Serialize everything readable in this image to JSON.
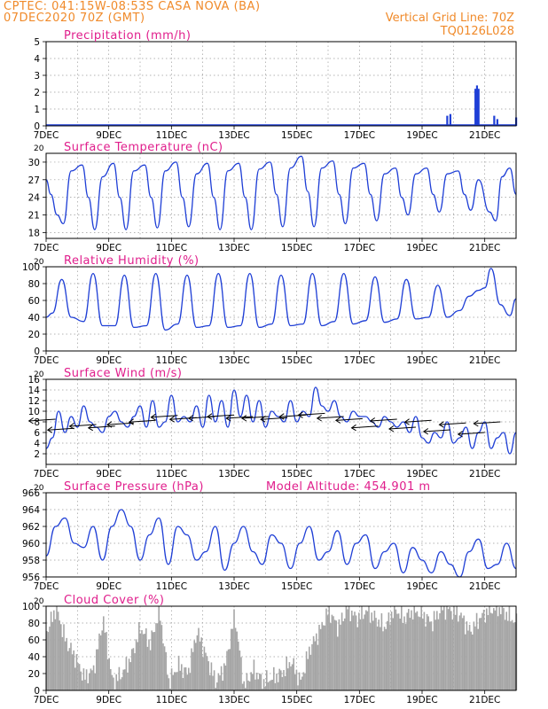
{
  "header": {
    "line1": "CPTEC:   041:15W-08:53S   CASA NOVA (BA)",
    "line2": "07DEC2020 70Z (GMT)",
    "grid_note": "Vertical Grid Line: 70Z",
    "model_code": "TQ0126L028"
  },
  "colors": {
    "header": "#f08a2a",
    "panel_title": "#e01e8c",
    "series": "#1f3fd6",
    "cloud": "#a6a6a6",
    "arrow": "#000000",
    "grid": "#9a9a9a"
  },
  "x_ticks": [
    "7DEC",
    "9DEC",
    "11DEC",
    "13DEC",
    "15DEC",
    "17DEC",
    "19DEC",
    "21DEC"
  ],
  "panels": [
    {
      "id": "precip",
      "title": "Precipitation (mm/h)",
      "subtitle": "",
      "extra": "",
      "type": "bar",
      "ylim": [
        0,
        5
      ],
      "yticks": [
        "0",
        "1",
        "2",
        "3",
        "4",
        "5"
      ]
    },
    {
      "id": "temp",
      "title": "Surface Temperature (nC)",
      "subtitle": "20",
      "extra": "",
      "type": "line",
      "ylim": [
        17,
        31.5
      ],
      "yticks": [
        "18",
        "21",
        "24",
        "27",
        "30"
      ]
    },
    {
      "id": "rh",
      "title": "Relative Humidity (%)",
      "subtitle": "20",
      "extra": "",
      "type": "line",
      "ylim": [
        0,
        100
      ],
      "yticks": [
        "0",
        "20",
        "40",
        "60",
        "80",
        "100"
      ]
    },
    {
      "id": "wind",
      "title": "Surface Wind (m/s)",
      "subtitle": "20",
      "extra": "",
      "type": "line",
      "ylim": [
        0,
        16
      ],
      "yticks": [
        "2",
        "4",
        "6",
        "8",
        "10",
        "12",
        "14",
        "16"
      ]
    },
    {
      "id": "pres",
      "title": "Surface Pressure (hPa)",
      "subtitle": "20",
      "extra": "Model Altitude: 454.901 m",
      "type": "line",
      "ylim": [
        956,
        966
      ],
      "yticks": [
        "956",
        "958",
        "960",
        "962",
        "964",
        "966"
      ]
    },
    {
      "id": "cloud",
      "title": "Cloud Cover (%)",
      "subtitle": "20",
      "extra": "",
      "type": "bar",
      "ylim": [
        0,
        100
      ],
      "yticks": [
        "0",
        "20",
        "40",
        "60",
        "80",
        "100"
      ]
    }
  ],
  "chart_data": [
    {
      "type": "bar",
      "title": "Precipitation (mm/h)",
      "xlabel": "",
      "ylabel": "mm/h",
      "ylim": [
        0,
        5
      ],
      "grid": true,
      "categories": [
        "7DEC",
        "8DEC",
        "9DEC",
        "10DEC",
        "11DEC",
        "12DEC",
        "13DEC",
        "14DEC",
        "15DEC",
        "16DEC",
        "17DEC",
        "18DEC",
        "19DEC",
        "19.8DEC",
        "19.9DEC",
        "20DEC",
        "20.7DEC",
        "20.75DEC",
        "20.8DEC",
        "21.3DEC",
        "21.4DEC",
        "22DEC"
      ],
      "values": [
        0.05,
        0.05,
        0.05,
        0.05,
        0.05,
        0.05,
        0.05,
        0.05,
        0.05,
        0.05,
        0.05,
        0.05,
        0.05,
        0.6,
        0.7,
        0.1,
        2.2,
        2.4,
        2.2,
        0.6,
        0.4,
        0.5
      ]
    },
    {
      "type": "line",
      "title": "Surface Temperature (nC)",
      "xlabel": "",
      "ylabel": "nC",
      "ylim": [
        17,
        31.5
      ],
      "grid": true,
      "x": [
        7.0,
        7.15,
        7.35,
        7.55,
        7.8,
        8.15,
        8.35,
        8.55,
        8.8,
        9.15,
        9.35,
        9.55,
        9.8,
        10.15,
        10.35,
        10.55,
        10.8,
        11.15,
        11.35,
        11.55,
        11.8,
        12.15,
        12.35,
        12.55,
        12.8,
        13.15,
        13.35,
        13.55,
        13.8,
        14.15,
        14.35,
        14.55,
        14.8,
        15.15,
        15.35,
        15.55,
        15.8,
        16.15,
        16.35,
        16.55,
        16.8,
        17.15,
        17.35,
        17.55,
        17.8,
        18.15,
        18.35,
        18.55,
        18.8,
        19.15,
        19.35,
        19.55,
        19.8,
        20.15,
        20.35,
        20.55,
        20.8,
        21.15,
        21.35,
        21.55,
        21.8,
        22.0
      ],
      "values": [
        27,
        24.5,
        21,
        19.5,
        28.5,
        29.5,
        24,
        18.5,
        27.5,
        29.8,
        24,
        18.5,
        28.5,
        29.5,
        24,
        18.8,
        28.5,
        30,
        24,
        19,
        28,
        29.8,
        24,
        18.5,
        28.5,
        29.8,
        24,
        18.5,
        28.8,
        30,
        24.5,
        19,
        29,
        31,
        25,
        19,
        29,
        30.2,
        24.5,
        19.5,
        29,
        29.8,
        24.5,
        20,
        28,
        29,
        24,
        21,
        28,
        29,
        24.5,
        21.5,
        28,
        28.5,
        24.5,
        21.8,
        27,
        21.5,
        20,
        27.5,
        29,
        24.5
      ]
    },
    {
      "type": "line",
      "title": "Relative Humidity (%)",
      "xlabel": "",
      "ylabel": "%",
      "ylim": [
        0,
        100
      ],
      "grid": true,
      "x": [
        7.0,
        7.2,
        7.5,
        7.8,
        8.2,
        8.5,
        8.8,
        9.2,
        9.5,
        9.8,
        10.2,
        10.5,
        10.8,
        11.2,
        11.5,
        11.8,
        12.2,
        12.5,
        12.8,
        13.2,
        13.5,
        13.8,
        14.2,
        14.5,
        14.8,
        15.2,
        15.5,
        15.8,
        16.2,
        16.5,
        16.8,
        17.2,
        17.5,
        17.8,
        18.2,
        18.5,
        18.8,
        19.2,
        19.5,
        19.8,
        20.2,
        20.5,
        20.8,
        21.0,
        21.2,
        21.5,
        21.8,
        22.0
      ],
      "values": [
        40,
        45,
        85,
        40,
        35,
        92,
        30,
        30,
        90,
        28,
        30,
        92,
        25,
        32,
        90,
        28,
        30,
        92,
        28,
        30,
        92,
        28,
        32,
        90,
        30,
        32,
        92,
        30,
        35,
        92,
        32,
        36,
        88,
        34,
        38,
        85,
        38,
        40,
        78,
        40,
        48,
        65,
        72,
        75,
        98,
        55,
        42,
        62
      ]
    },
    {
      "type": "line",
      "title": "Surface Wind (m/s)",
      "xlabel": "",
      "ylabel": "m/s",
      "ylim": [
        0,
        16
      ],
      "grid": true,
      "x": [
        7.0,
        7.2,
        7.4,
        7.6,
        7.8,
        8.0,
        8.2,
        8.4,
        8.6,
        8.8,
        9.0,
        9.2,
        9.4,
        9.6,
        9.8,
        10.0,
        10.2,
        10.4,
        10.6,
        10.8,
        11.0,
        11.2,
        11.4,
        11.6,
        11.8,
        12.0,
        12.2,
        12.4,
        12.6,
        12.8,
        13.0,
        13.2,
        13.4,
        13.6,
        13.8,
        14.0,
        14.2,
        14.4,
        14.6,
        14.8,
        15.0,
        15.2,
        15.4,
        15.6,
        15.8,
        16.0,
        16.2,
        16.4,
        16.6,
        16.8,
        17.0,
        17.2,
        17.4,
        17.6,
        17.8,
        18.0,
        18.2,
        18.4,
        18.6,
        18.8,
        19.0,
        19.2,
        19.4,
        19.6,
        19.8,
        20.0,
        20.2,
        20.4,
        20.6,
        20.8,
        21.0,
        21.2,
        21.4,
        21.6,
        21.8,
        22.0
      ],
      "values": [
        3,
        5,
        10,
        6,
        9,
        7,
        11,
        8,
        7,
        6,
        9,
        10,
        8,
        7,
        9,
        11,
        7,
        12,
        7,
        8,
        13,
        8,
        9,
        8,
        11,
        7,
        13,
        8,
        12,
        7,
        14,
        9,
        13,
        8,
        12,
        7,
        10,
        9,
        8,
        12,
        8,
        10,
        9,
        14.5,
        11,
        10,
        12,
        9,
        8,
        10,
        9,
        9,
        8,
        7,
        9,
        8,
        7,
        8,
        6,
        9,
        5,
        4,
        6,
        5,
        8,
        4,
        5,
        7,
        3,
        6,
        8,
        3,
        5,
        6,
        2,
        6
      ]
    },
    {
      "type": "line",
      "title": "Surface Pressure (hPa)",
      "xlabel": "",
      "ylabel": "hPa",
      "ylim": [
        956,
        966
      ],
      "grid": true,
      "x": [
        7.0,
        7.3,
        7.6,
        7.9,
        8.2,
        8.5,
        8.8,
        9.1,
        9.4,
        9.7,
        10.0,
        10.3,
        10.6,
        10.9,
        11.2,
        11.5,
        11.8,
        12.1,
        12.4,
        12.7,
        13.0,
        13.3,
        13.6,
        13.9,
        14.2,
        14.5,
        14.8,
        15.1,
        15.4,
        15.7,
        16.0,
        16.3,
        16.6,
        16.9,
        17.2,
        17.5,
        17.8,
        18.1,
        18.4,
        18.7,
        19.0,
        19.3,
        19.6,
        19.9,
        20.2,
        20.5,
        20.8,
        21.1,
        21.4,
        21.7,
        22.0
      ],
      "values": [
        958.5,
        962,
        963,
        960,
        959.5,
        962,
        958,
        962,
        964,
        962,
        958,
        961,
        963,
        957.5,
        962,
        961,
        958,
        959,
        962,
        956.8,
        960,
        962,
        959,
        957.5,
        961,
        960,
        957,
        960,
        962,
        958,
        959,
        961.5,
        957.5,
        960,
        961,
        957,
        959,
        960,
        956.5,
        959.5,
        958,
        956.5,
        959,
        957.5,
        956,
        959,
        960.5,
        957,
        957.5,
        960,
        957
      ]
    },
    {
      "type": "bar",
      "title": "Cloud Cover (%)",
      "xlabel": "",
      "ylabel": "%",
      "ylim": [
        0,
        100
      ],
      "grid": true,
      "x": [
        7.0,
        7.3,
        7.6,
        7.9,
        8.2,
        8.5,
        8.8,
        9.1,
        9.4,
        9.7,
        10.0,
        10.3,
        10.6,
        10.9,
        11.2,
        11.5,
        11.8,
        12.1,
        12.4,
        12.7,
        13.0,
        13.3,
        13.6,
        13.9,
        14.2,
        14.5,
        14.8,
        15.1,
        15.4,
        15.7,
        16.0,
        16.3,
        16.6,
        16.9,
        17.2,
        17.5,
        17.8,
        18.1,
        18.4,
        18.7,
        19.0,
        19.3,
        19.6,
        19.9,
        20.2,
        20.5,
        20.8,
        21.1,
        21.4,
        21.7,
        22.0
      ],
      "values": [
        70,
        98,
        60,
        40,
        15,
        25,
        85,
        10,
        20,
        40,
        75,
        55,
        95,
        10,
        30,
        20,
        70,
        40,
        10,
        30,
        90,
        5,
        25,
        10,
        15,
        20,
        35,
        10,
        50,
        70,
        95,
        75,
        98,
        85,
        95,
        85,
        75,
        98,
        85,
        95,
        90,
        80,
        98,
        95,
        90,
        70,
        85,
        95,
        98,
        90,
        80
      ]
    }
  ]
}
